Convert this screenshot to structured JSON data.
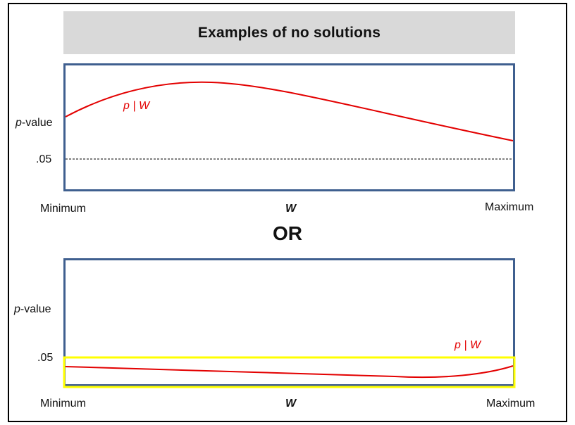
{
  "title": "Examples of no solutions",
  "separator": "OR",
  "panels": [
    {
      "ylabel_prefix": "p",
      "ylabel_suffix": "-value",
      "threshold_label": ".05",
      "curve_label": "p | W",
      "x_min_label": "Minimum",
      "x_axis_label": "W",
      "x_max_label": "Maximum"
    },
    {
      "ylabel_prefix": "p",
      "ylabel_suffix": "-value",
      "threshold_label": ".05",
      "curve_label": "p | W",
      "x_min_label": "Minimum",
      "x_axis_label": "W",
      "x_max_label": "Maximum"
    }
  ],
  "colors": {
    "curve": "#e30000",
    "panel_border": "#3f5f8f",
    "highlight": "#ffff00",
    "title_bg": "#d9d9d9"
  }
}
